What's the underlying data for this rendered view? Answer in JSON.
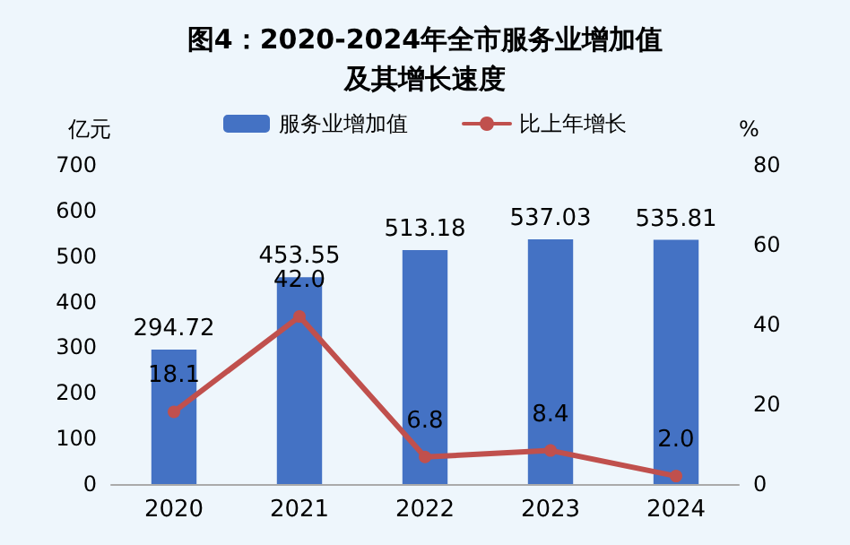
{
  "chart_data": {
    "type": "bar",
    "title": "图4：2020-2024年全市服务业增加值及其增长速度",
    "ylabel": "亿元",
    "y2label": "%",
    "categories": [
      "2020",
      "2021",
      "2022",
      "2023",
      "2024"
    ],
    "series": [
      {
        "name": "服务业增加值",
        "color": "#4472c4",
        "values": [
          294.72,
          453.55,
          513.18,
          537.03,
          535.81
        ]
      },
      {
        "name": "比上年增长",
        "type": "line",
        "axis": "y2",
        "color": "#c0504d",
        "values": [
          18.1,
          42.0,
          6.8,
          8.4,
          2.0
        ],
        "value_labels": [
          "18.1",
          "42.0",
          "6.8",
          "8.4",
          "2.0"
        ]
      }
    ],
    "value_labels": [
      "294.72",
      "453.55",
      "513.18",
      "537.03",
      "535.81"
    ],
    "ylim": [
      0,
      700
    ],
    "yticks": [
      0,
      100,
      200,
      300,
      400,
      500,
      600,
      700
    ],
    "y2lim": [
      0,
      80
    ],
    "y2ticks": [
      0,
      20,
      40,
      60,
      80
    ],
    "legend": "top",
    "grid": false,
    "marker": "circle",
    "line_style": "solid"
  }
}
